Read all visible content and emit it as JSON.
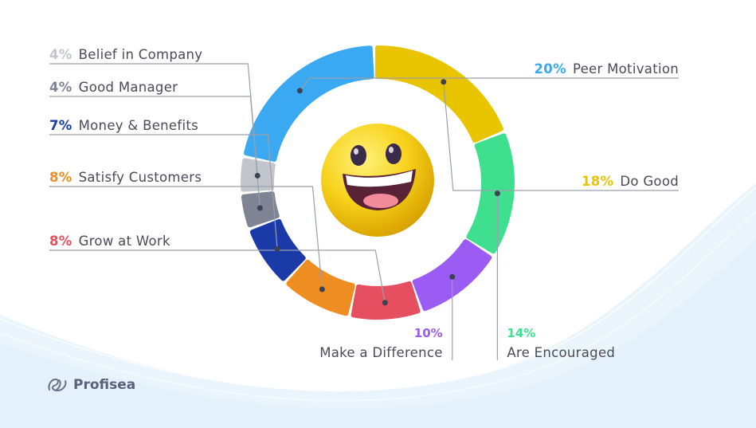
{
  "chart_data": {
    "type": "pie",
    "variant": "donut",
    "title": "",
    "slices": [
      {
        "label": "Peer Motivation",
        "value": 20,
        "value_label": "20%",
        "color": "#3aa9f2"
      },
      {
        "label": "Do Good",
        "value": 18,
        "value_label": "18%",
        "color": "#e9c400"
      },
      {
        "label": "Are Encouraged",
        "value": 14,
        "value_label": "14%",
        "color": "#3ee08f"
      },
      {
        "label": "Make a Difference",
        "value": 10,
        "value_label": "10%",
        "color": "#9a5cf2"
      },
      {
        "label": "Grow at Work",
        "value": 8,
        "value_label": "8%",
        "color": "#e64f5f"
      },
      {
        "label": "Satisfy Customers",
        "value": 8,
        "value_label": "8%",
        "color": "#ee8d22"
      },
      {
        "label": "Money & Benefits",
        "value": 7,
        "value_label": "7%",
        "color": "#1a3aa8"
      },
      {
        "label": "Good Manager",
        "value": 4,
        "value_label": "4%",
        "color": "#7f8494"
      },
      {
        "label": "Belief in Company",
        "value": 4,
        "value_label": "4%",
        "color": "#c3c5cc"
      }
    ],
    "legend": "none",
    "center_icon": "grinning-face-emoji"
  },
  "brand": {
    "name": "Profisea",
    "icon": "profisea-logo-icon"
  },
  "colors": {
    "background_wave": "#e6f2fc",
    "label_text": "#4a4a58",
    "leader_line": "#9aa0aa"
  }
}
